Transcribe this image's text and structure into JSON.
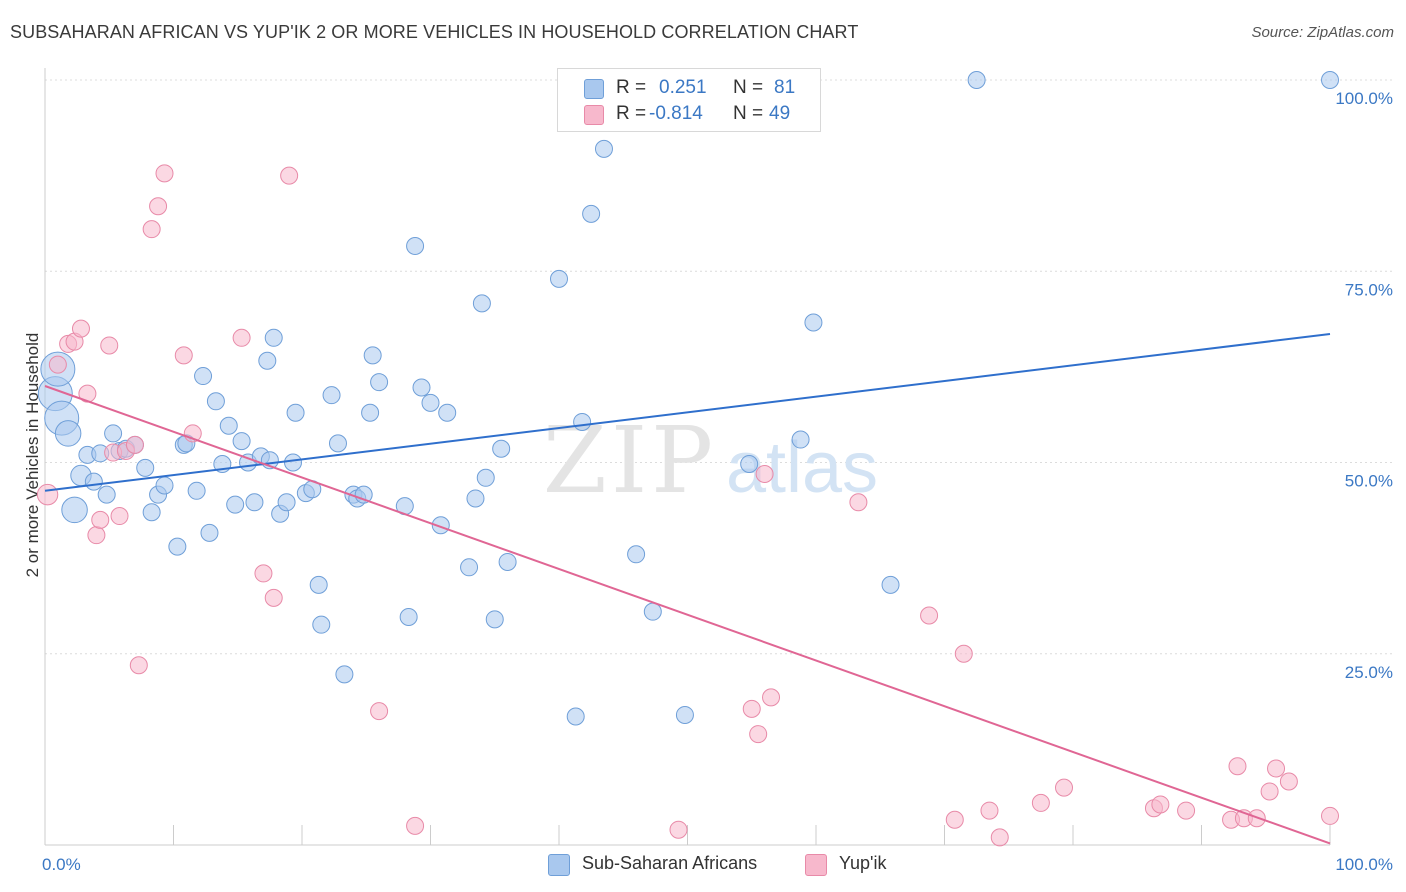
{
  "title": "SUBSAHARAN AFRICAN VS YUP'IK 2 OR MORE VEHICLES IN HOUSEHOLD CORRELATION CHART",
  "source": "Source: ZipAtlas.com",
  "watermark": {
    "zip": "ZIP",
    "atlas": "atlas"
  },
  "legend": {
    "rows": [
      {
        "r_label": "R =",
        "r_value": "0.251",
        "n_label": "N =",
        "n_value": "81",
        "color": "#a9c8ee"
      },
      {
        "r_label": "R =",
        "r_value": "-0.814",
        "n_label": "N =",
        "n_value": "49",
        "color": "#f7b8cc"
      }
    ]
  },
  "bottom_legend": [
    {
      "label": "Sub-Saharan Africans",
      "color": "#a9c8ee"
    },
    {
      "label": "Yup'ik",
      "color": "#f7b8cc"
    }
  ],
  "chart_data": {
    "type": "scatter",
    "title": "SUBSAHARAN AFRICAN VS YUP'IK 2 OR MORE VEHICLES IN HOUSEHOLD CORRELATION CHART",
    "xlabel": "",
    "ylabel": "2 or more Vehicles in Household",
    "xlim": [
      0,
      100
    ],
    "ylim": [
      0,
      100
    ],
    "x_tick_labels": [
      {
        "value": 0,
        "label": "0.0%"
      },
      {
        "value": 100,
        "label": "100.0%"
      }
    ],
    "y_tick_labels": [
      {
        "value": 25,
        "label": "25.0%"
      },
      {
        "value": 50,
        "label": "50.0%"
      },
      {
        "value": 75,
        "label": "75.0%"
      },
      {
        "value": 100,
        "label": "100.0%"
      }
    ],
    "grid": true,
    "legend_position": "top-center",
    "series": [
      {
        "name": "Sub-Saharan Africans",
        "color": "#a9c8ee",
        "stroke": "#6f9fd8",
        "trend": {
          "x": [
            0,
            100
          ],
          "y": [
            46.3,
            66.8
          ],
          "color": "#2f6fcc"
        },
        "points": [
          [
            0.8,
            59.0,
            2
          ],
          [
            1.3,
            55.8,
            2
          ],
          [
            1.0,
            62.2,
            2
          ],
          [
            1.8,
            53.8,
            1.5
          ],
          [
            2.3,
            43.8,
            1.5
          ],
          [
            2.8,
            48.3,
            1.2
          ],
          [
            3.3,
            51.0,
            1
          ],
          [
            3.8,
            47.5,
            1
          ],
          [
            4.3,
            51.2,
            1
          ],
          [
            4.8,
            45.8,
            1
          ],
          [
            5.3,
            53.8,
            1
          ],
          [
            5.8,
            51.5,
            1
          ],
          [
            6.3,
            51.8,
            1
          ],
          [
            7.0,
            52.3,
            1
          ],
          [
            7.8,
            49.3,
            1
          ],
          [
            8.3,
            43.5,
            1
          ],
          [
            8.8,
            45.8,
            1
          ],
          [
            9.3,
            47.0,
            1
          ],
          [
            10.3,
            39.0,
            1
          ],
          [
            10.8,
            52.3,
            1
          ],
          [
            11.0,
            52.5,
            1
          ],
          [
            11.8,
            46.3,
            1
          ],
          [
            12.3,
            61.3,
            1
          ],
          [
            12.8,
            40.8,
            1
          ],
          [
            13.3,
            58.0,
            1
          ],
          [
            13.8,
            49.8,
            1
          ],
          [
            14.3,
            54.8,
            1
          ],
          [
            14.8,
            44.5,
            1
          ],
          [
            15.3,
            52.8,
            1
          ],
          [
            15.8,
            50.0,
            1
          ],
          [
            16.3,
            44.8,
            1
          ],
          [
            16.8,
            50.8,
            1
          ],
          [
            17.3,
            63.3,
            1
          ],
          [
            17.5,
            50.3,
            1
          ],
          [
            17.8,
            66.3,
            1
          ],
          [
            18.3,
            43.3,
            1
          ],
          [
            18.8,
            44.8,
            1
          ],
          [
            19.3,
            50.0,
            1
          ],
          [
            19.5,
            56.5,
            1
          ],
          [
            20.3,
            46.0,
            1
          ],
          [
            20.8,
            46.5,
            1
          ],
          [
            21.3,
            34.0,
            1
          ],
          [
            21.5,
            28.8,
            1
          ],
          [
            22.3,
            58.8,
            1
          ],
          [
            22.8,
            52.5,
            1
          ],
          [
            23.3,
            22.3,
            1
          ],
          [
            24.0,
            45.8,
            1
          ],
          [
            24.3,
            45.3,
            1
          ],
          [
            24.8,
            45.8,
            1
          ],
          [
            25.3,
            56.5,
            1
          ],
          [
            25.5,
            64.0,
            1
          ],
          [
            26.0,
            60.5,
            1
          ],
          [
            28.0,
            44.3,
            1
          ],
          [
            28.3,
            29.8,
            1
          ],
          [
            28.8,
            78.3,
            1
          ],
          [
            29.3,
            59.8,
            1
          ],
          [
            30.0,
            57.8,
            1
          ],
          [
            30.8,
            41.8,
            1
          ],
          [
            31.3,
            56.5,
            1
          ],
          [
            33.0,
            36.3,
            1
          ],
          [
            33.5,
            45.3,
            1
          ],
          [
            34.0,
            70.8,
            1
          ],
          [
            34.3,
            48.0,
            1
          ],
          [
            35.0,
            29.5,
            1
          ],
          [
            35.5,
            51.8,
            1
          ],
          [
            36.0,
            37.0,
            1
          ],
          [
            40.0,
            74.0,
            1
          ],
          [
            41.3,
            16.8,
            1
          ],
          [
            41.8,
            55.3,
            1
          ],
          [
            42.5,
            82.5,
            1
          ],
          [
            43.5,
            91.0,
            1
          ],
          [
            46.0,
            38.0,
            1
          ],
          [
            47.3,
            30.5,
            1
          ],
          [
            49.8,
            17.0,
            1
          ],
          [
            54.8,
            49.8,
            1
          ],
          [
            58.8,
            53.0,
            1
          ],
          [
            59.8,
            68.3,
            1
          ],
          [
            65.8,
            34.0,
            1
          ],
          [
            72.5,
            100.0,
            1
          ],
          [
            100.0,
            100.0,
            1
          ]
        ]
      },
      {
        "name": "Yup'ik",
        "color": "#f7b8cc",
        "stroke": "#e88aa8",
        "trend": {
          "x": [
            0,
            100
          ],
          "y": [
            60.0,
            0.2
          ],
          "color": "#e06694"
        },
        "points": [
          [
            0.2,
            45.8,
            1.2
          ],
          [
            1.0,
            62.8,
            1
          ],
          [
            1.8,
            65.5,
            1
          ],
          [
            2.3,
            65.8,
            1
          ],
          [
            2.8,
            67.5,
            1
          ],
          [
            3.3,
            59.0,
            1
          ],
          [
            4.0,
            40.5,
            1
          ],
          [
            4.3,
            42.5,
            1
          ],
          [
            5.0,
            65.3,
            1
          ],
          [
            5.3,
            51.3,
            1
          ],
          [
            5.8,
            43.0,
            1
          ],
          [
            6.3,
            51.5,
            1
          ],
          [
            7.0,
            52.3,
            1
          ],
          [
            7.3,
            23.5,
            1
          ],
          [
            8.3,
            80.5,
            1
          ],
          [
            8.8,
            83.5,
            1
          ],
          [
            9.3,
            87.8,
            1
          ],
          [
            10.8,
            64.0,
            1
          ],
          [
            11.5,
            53.8,
            1
          ],
          [
            15.3,
            66.3,
            1
          ],
          [
            17.0,
            35.5,
            1
          ],
          [
            17.8,
            32.3,
            1
          ],
          [
            19.0,
            87.5,
            1
          ],
          [
            26.0,
            17.5,
            1
          ],
          [
            28.8,
            2.5,
            1
          ],
          [
            49.3,
            2.0,
            1
          ],
          [
            55.0,
            17.8,
            1
          ],
          [
            55.5,
            14.5,
            1
          ],
          [
            56.0,
            48.5,
            1
          ],
          [
            56.5,
            19.3,
            1
          ],
          [
            63.3,
            44.8,
            1
          ],
          [
            68.8,
            30.0,
            1
          ],
          [
            70.8,
            3.3,
            1
          ],
          [
            71.5,
            25.0,
            1
          ],
          [
            73.5,
            4.5,
            1
          ],
          [
            74.3,
            1.0,
            1
          ],
          [
            77.5,
            5.5,
            1
          ],
          [
            79.3,
            7.5,
            1
          ],
          [
            86.3,
            4.8,
            1
          ],
          [
            86.8,
            5.3,
            1
          ],
          [
            88.8,
            4.5,
            1
          ],
          [
            92.3,
            3.3,
            1
          ],
          [
            92.8,
            10.3,
            1
          ],
          [
            93.3,
            3.5,
            1
          ],
          [
            94.3,
            3.5,
            1
          ],
          [
            95.3,
            7.0,
            1
          ],
          [
            95.8,
            10.0,
            1
          ],
          [
            96.8,
            8.3,
            1
          ],
          [
            100.0,
            3.8,
            1
          ]
        ]
      }
    ]
  }
}
